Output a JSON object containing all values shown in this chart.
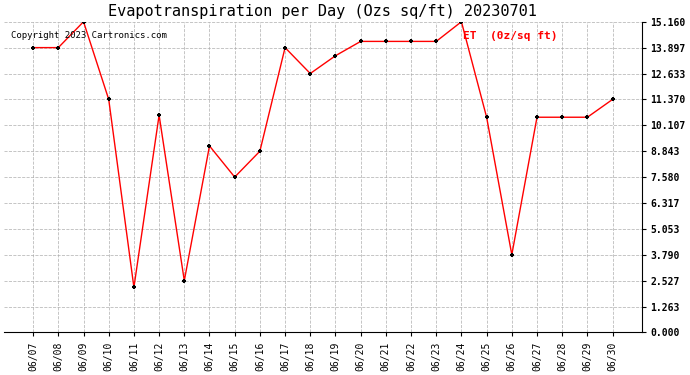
{
  "title": "Evapotranspiration per Day (Ozs sq/ft) 20230701",
  "copyright": "Copyright 2023 Cartronics.com",
  "legend_label": "ET  (0z/sq ft)",
  "dates": [
    "06/07",
    "06/08",
    "06/09",
    "06/10",
    "06/11",
    "06/12",
    "06/13",
    "06/14",
    "06/15",
    "06/16",
    "06/17",
    "06/18",
    "06/19",
    "06/20",
    "06/21",
    "06/22",
    "06/23",
    "06/24",
    "06/25",
    "06/26",
    "06/27",
    "06/28",
    "06/29",
    "06/30"
  ],
  "values": [
    13.897,
    13.897,
    15.16,
    11.37,
    2.2,
    10.6,
    2.527,
    9.1,
    7.58,
    8.843,
    13.897,
    12.633,
    13.5,
    14.2,
    14.2,
    14.2,
    14.2,
    15.16,
    10.5,
    3.79,
    10.5,
    10.5,
    10.5,
    11.37
  ],
  "y_ticks": [
    0.0,
    1.263,
    2.527,
    3.79,
    5.053,
    6.317,
    7.58,
    8.843,
    10.107,
    11.37,
    12.633,
    13.897,
    15.16
  ],
  "ylim": [
    0.0,
    15.16
  ],
  "line_color": "red",
  "marker_color": "black",
  "grid_color": "#aaaaaa",
  "bg_color": "white",
  "title_fontsize": 11,
  "copyright_fontsize": 6.5,
  "legend_fontsize": 8,
  "legend_color": "red",
  "tick_fontsize": 7,
  "figwidth": 6.9,
  "figheight": 3.75,
  "dpi": 100
}
